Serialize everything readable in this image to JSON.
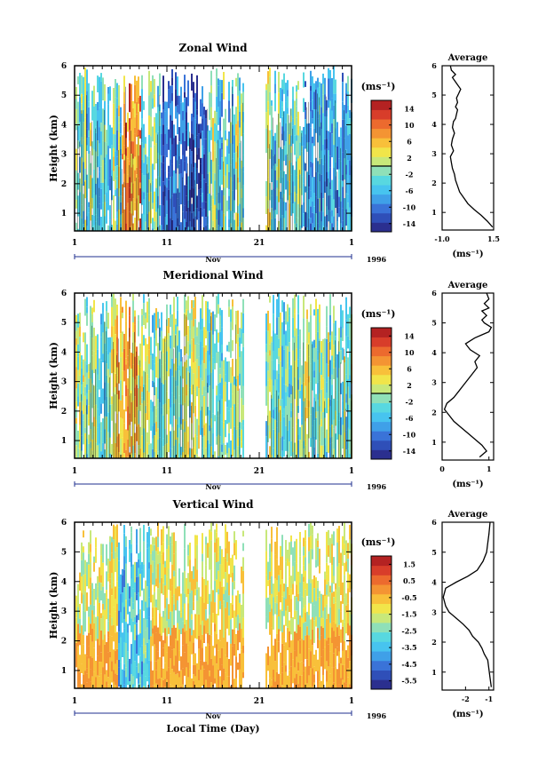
{
  "chart_data": [
    {
      "type": "heatmap",
      "title": "Zonal Wind",
      "ylabel": "Height (km)",
      "ylim": [
        0.4,
        6.0
      ],
      "yticks": [
        "1",
        "2",
        "3",
        "4",
        "5",
        "6"
      ],
      "xticks": [
        "1",
        "11",
        "21",
        "1"
      ],
      "month_label": "Nov",
      "year_label": "1996",
      "colorbar": {
        "unit_label": "(ms⁻¹)",
        "tick_labels": [
          "14",
          "10",
          "6",
          "2",
          "-2",
          "-6",
          "-10",
          "-14"
        ],
        "range": [
          -16,
          16
        ],
        "contour_mark": 0,
        "colors": [
          "#2b2f8f",
          "#2f4fb8",
          "#3a73d8",
          "#3fa0e8",
          "#47c4ef",
          "#58d8e0",
          "#8fe0b8",
          "#c8e87a",
          "#f1e54a",
          "#f8c03a",
          "#f49433",
          "#ec6a2e",
          "#d83d2a",
          "#b42222"
        ]
      },
      "data_gap": [
        "Nov 19",
        "Nov 21"
      ],
      "profile": {
        "title": "Average",
        "xlabel": "(ms⁻¹)",
        "xticks": [
          "-1.0",
          "1.5"
        ],
        "xlim": [
          -1.0,
          1.5
        ],
        "yticks": [
          "1",
          "2",
          "3",
          "4",
          "5",
          "6"
        ],
        "ylim": [
          0.4,
          6.0
        ],
        "x": [
          1.45,
          1.2,
          0.9,
          0.55,
          0.25,
          0.05,
          -0.15,
          -0.25,
          -0.35,
          -0.4,
          -0.5,
          -0.55,
          -0.6,
          -0.45,
          -0.55,
          -0.5,
          -0.4,
          -0.5,
          -0.45,
          -0.35,
          -0.3,
          -0.25,
          -0.35,
          -0.25,
          -0.3,
          -0.2,
          -0.1,
          -0.25,
          -0.4,
          -0.5,
          -0.35,
          -0.55,
          -0.6
        ],
        "y": [
          0.5,
          0.7,
          0.9,
          1.1,
          1.3,
          1.5,
          1.7,
          1.9,
          2.1,
          2.3,
          2.5,
          2.7,
          2.9,
          3.1,
          3.3,
          3.5,
          3.7,
          3.9,
          4.1,
          4.2,
          4.35,
          4.5,
          4.6,
          4.75,
          4.9,
          5.05,
          5.2,
          5.35,
          5.5,
          5.6,
          5.7,
          5.85,
          6.0
        ]
      }
    },
    {
      "type": "heatmap",
      "title": "Meridional Wind",
      "ylabel": "Height (km)",
      "ylim": [
        0.4,
        6.0
      ],
      "yticks": [
        "1",
        "2",
        "3",
        "4",
        "5",
        "6"
      ],
      "xticks": [
        "1",
        "11",
        "21",
        "1"
      ],
      "month_label": "Nov",
      "year_label": "1996",
      "colorbar": {
        "unit_label": "(ms⁻¹)",
        "tick_labels": [
          "14",
          "10",
          "6",
          "2",
          "-2",
          "-6",
          "-10",
          "-14"
        ],
        "range": [
          -16,
          16
        ],
        "contour_mark": 0,
        "colors": [
          "#2b2f8f",
          "#2f4fb8",
          "#3a73d8",
          "#3fa0e8",
          "#47c4ef",
          "#58d8e0",
          "#8fe0b8",
          "#c8e87a",
          "#f1e54a",
          "#f8c03a",
          "#f49433",
          "#ec6a2e",
          "#d83d2a",
          "#b42222"
        ]
      },
      "data_gap": [
        "Nov 19",
        "Nov 21"
      ],
      "profile": {
        "title": "Average",
        "xlabel": "(ms⁻¹)",
        "xticks": [
          "0",
          "1"
        ],
        "xlim": [
          0,
          1.1
        ],
        "yticks": [
          "1",
          "2",
          "3",
          "4",
          "5",
          "6"
        ],
        "ylim": [
          0.4,
          6.0
        ],
        "x": [
          0.8,
          0.95,
          0.85,
          0.7,
          0.55,
          0.4,
          0.25,
          0.15,
          0.05,
          0.1,
          0.25,
          0.35,
          0.45,
          0.55,
          0.65,
          0.75,
          0.7,
          0.8,
          0.6,
          0.5,
          0.7,
          0.85,
          1.0,
          1.05,
          0.9,
          0.85,
          0.95,
          0.85,
          1.0,
          0.9,
          1.0,
          0.95
        ],
        "y": [
          0.5,
          0.7,
          0.9,
          1.1,
          1.3,
          1.5,
          1.7,
          1.9,
          2.1,
          2.3,
          2.5,
          2.7,
          2.9,
          3.1,
          3.3,
          3.5,
          3.7,
          3.9,
          4.1,
          4.3,
          4.5,
          4.6,
          4.7,
          4.85,
          5.0,
          5.1,
          5.25,
          5.4,
          5.5,
          5.65,
          5.8,
          6.0
        ]
      }
    },
    {
      "type": "heatmap",
      "title": "Vertical Wind",
      "ylabel": "Height (km)",
      "xlabel": "Local Time (Day)",
      "ylim": [
        0.4,
        6.0
      ],
      "yticks": [
        "1",
        "2",
        "3",
        "4",
        "5",
        "6"
      ],
      "xticks": [
        "1",
        "11",
        "21",
        "1"
      ],
      "month_label": "Nov",
      "year_label": "1996",
      "colorbar": {
        "unit_label": "(ms⁻¹)",
        "tick_labels": [
          "1.5",
          "0.5",
          "-0.5",
          "-1.5",
          "-2.5",
          "-3.5",
          "-4.5",
          "-5.5"
        ],
        "range": [
          -6,
          2
        ],
        "colors": [
          "#2b2f8f",
          "#2f4fb8",
          "#3a73d8",
          "#3fa0e8",
          "#47c4ef",
          "#58d8e0",
          "#8fe0b8",
          "#c8e87a",
          "#f1e54a",
          "#f8c03a",
          "#f49433",
          "#ec6a2e",
          "#d83d2a",
          "#b42222"
        ]
      },
      "data_gap": [
        "Nov 19",
        "Nov 21"
      ],
      "profile": {
        "title": "Average",
        "xlabel": "(ms⁻¹)",
        "xticks": [
          "-2",
          "-1"
        ],
        "xlim": [
          -3,
          -0.8
        ],
        "yticks": [
          "1",
          "2",
          "3",
          "4",
          "5",
          "6"
        ],
        "ylim": [
          0.4,
          6.0
        ],
        "x": [
          -0.9,
          -0.95,
          -1.0,
          -1.05,
          -1.2,
          -1.3,
          -1.45,
          -1.7,
          -1.85,
          -2.1,
          -2.4,
          -2.7,
          -2.85,
          -2.95,
          -2.85,
          -2.4,
          -1.9,
          -1.5,
          -1.25,
          -1.1,
          -1.05,
          -1.0,
          -0.95
        ],
        "y": [
          0.5,
          0.8,
          1.1,
          1.4,
          1.6,
          1.8,
          2.0,
          2.2,
          2.4,
          2.6,
          2.8,
          3.0,
          3.2,
          3.5,
          3.8,
          4.0,
          4.2,
          4.4,
          4.7,
          5.0,
          5.3,
          5.6,
          6.0
        ]
      }
    }
  ]
}
